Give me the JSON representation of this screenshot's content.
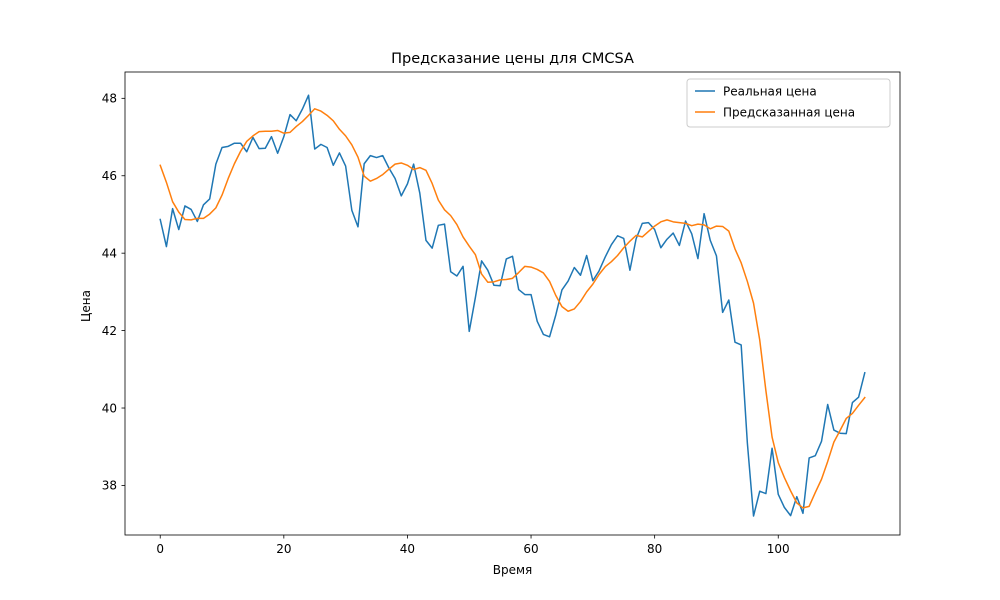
{
  "chart_data": {
    "type": "line",
    "title": "Предсказание цены для CMCSA",
    "xlabel": "Время",
    "ylabel": "Цена",
    "xlim": [
      -5.7,
      119.7
    ],
    "ylim": [
      36.72,
      48.68
    ],
    "xticks": [
      0,
      20,
      40,
      60,
      80,
      100
    ],
    "yticks": [
      38,
      40,
      42,
      44,
      46,
      48
    ],
    "legend": "top-right",
    "grid": false,
    "series": [
      {
        "name": "Реальная цена",
        "color": "#1f77b4",
        "values": [
          44.87,
          44.17,
          45.15,
          44.61,
          45.22,
          45.13,
          44.82,
          45.25,
          45.4,
          46.3,
          46.73,
          46.76,
          46.84,
          46.84,
          46.62,
          46.99,
          46.7,
          46.71,
          47.01,
          46.58,
          47.01,
          47.58,
          47.42,
          47.72,
          48.08,
          46.69,
          46.81,
          46.73,
          46.27,
          46.59,
          46.25,
          45.11,
          44.68,
          46.31,
          46.52,
          46.47,
          46.52,
          46.2,
          45.93,
          45.48,
          45.79,
          46.3,
          45.55,
          44.33,
          44.13,
          44.72,
          44.75,
          43.52,
          43.41,
          43.66,
          41.98,
          42.86,
          43.8,
          43.56,
          43.17,
          43.16,
          43.85,
          43.92,
          43.06,
          42.93,
          42.93,
          42.24,
          41.9,
          41.84,
          42.4,
          43.05,
          43.28,
          43.63,
          43.43,
          43.94,
          43.29,
          43.54,
          43.9,
          44.22,
          44.45,
          44.38,
          43.56,
          44.37,
          44.77,
          44.79,
          44.61,
          44.14,
          44.36,
          44.52,
          44.2,
          44.83,
          44.5,
          43.86,
          45.02,
          44.33,
          43.93,
          42.47,
          42.79,
          41.7,
          41.63,
          39.1,
          37.21,
          37.85,
          37.79,
          38.96,
          37.77,
          37.43,
          37.22,
          37.71,
          37.28,
          38.71,
          38.77,
          39.14,
          40.09,
          39.43,
          39.35,
          39.34,
          40.14,
          40.28,
          40.91
        ]
      },
      {
        "name": "Предсказанная цена",
        "color": "#ff7f0e",
        "values": [
          46.27,
          45.83,
          45.33,
          45.06,
          44.87,
          44.86,
          44.9,
          44.9,
          45.01,
          45.17,
          45.5,
          45.93,
          46.31,
          46.63,
          46.89,
          47.03,
          47.14,
          47.15,
          47.15,
          47.17,
          47.1,
          47.12,
          47.27,
          47.4,
          47.56,
          47.73,
          47.67,
          47.56,
          47.42,
          47.2,
          47.03,
          46.8,
          46.48,
          45.99,
          45.86,
          45.93,
          46.03,
          46.17,
          46.3,
          46.33,
          46.27,
          46.16,
          46.21,
          46.14,
          45.8,
          45.37,
          45.12,
          44.97,
          44.74,
          44.42,
          44.18,
          43.96,
          43.46,
          43.25,
          43.26,
          43.31,
          43.32,
          43.35,
          43.5,
          43.66,
          43.64,
          43.58,
          43.49,
          43.27,
          42.91,
          42.62,
          42.5,
          42.56,
          42.75,
          43.0,
          43.2,
          43.45,
          43.65,
          43.78,
          43.94,
          44.14,
          44.31,
          44.46,
          44.42,
          44.56,
          44.7,
          44.81,
          44.86,
          44.81,
          44.79,
          44.77,
          44.71,
          44.75,
          44.73,
          44.63,
          44.7,
          44.69,
          44.57,
          44.11,
          43.75,
          43.27,
          42.71,
          41.76,
          40.45,
          39.25,
          38.59,
          38.2,
          37.86,
          37.55,
          37.42,
          37.46,
          37.82,
          38.16,
          38.62,
          39.12,
          39.42,
          39.73,
          39.86,
          40.07,
          40.27
        ]
      }
    ]
  }
}
